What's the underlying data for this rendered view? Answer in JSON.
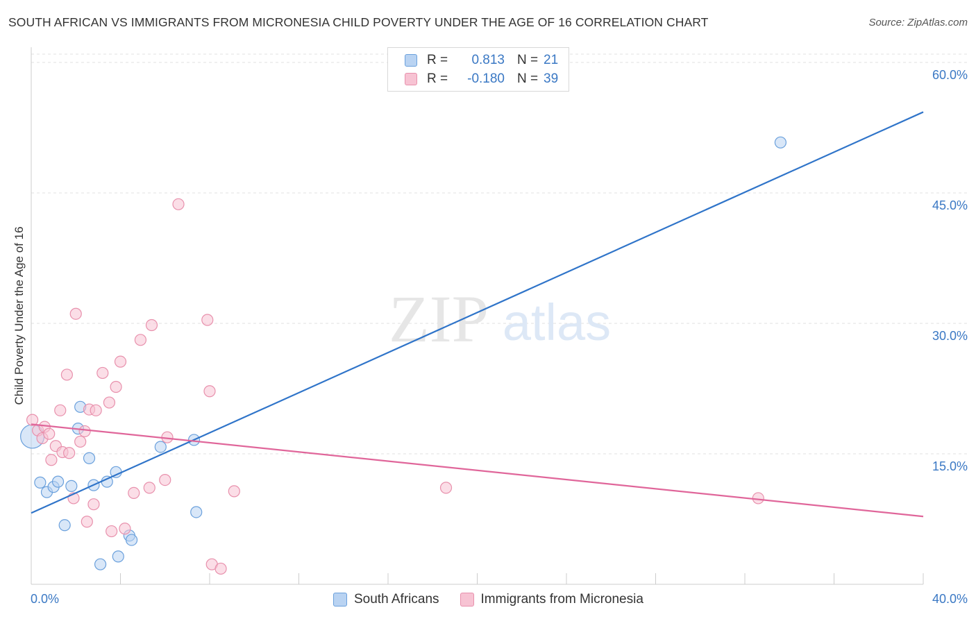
{
  "header": {
    "title": "SOUTH AFRICAN VS IMMIGRANTS FROM MICRONESIA CHILD POVERTY UNDER THE AGE OF 16 CORRELATION CHART",
    "source": "Source: ZipAtlas.com"
  },
  "watermark": {
    "zip": "ZIP",
    "atlas": "atlas"
  },
  "legend_top": {
    "rows": [
      {
        "r_label": "R =",
        "r_value": "0.813",
        "n_label": "N =",
        "n_value": "21",
        "color": "#a9c8ef"
      },
      {
        "r_label": "R =",
        "r_value": "-0.180",
        "n_label": "N =",
        "n_value": "39",
        "color": "#f5b8cb"
      }
    ]
  },
  "legend_bottom": {
    "items": [
      {
        "label": "South Africans",
        "color": "#a9c8ef"
      },
      {
        "label": "Immigrants from Micronesia",
        "color": "#f5b8cb"
      }
    ]
  },
  "chart_data": {
    "type": "scatter",
    "title": "SOUTH AFRICAN VS IMMIGRANTS FROM MICRONESIA CHILD POVERTY UNDER THE AGE OF 16 CORRELATION CHART",
    "xlabel": "",
    "ylabel": "Child Poverty Under the Age of 16",
    "xlim": [
      0,
      40
    ],
    "ylim": [
      0,
      62
    ],
    "x_tick_labels": [
      "0.0%",
      "40.0%"
    ],
    "y_ticks": [
      15,
      30,
      45,
      60
    ],
    "y_tick_labels": [
      "15.0%",
      "30.0%",
      "45.0%",
      "60.0%"
    ],
    "grid": true,
    "series": [
      {
        "name": "South Africans",
        "color": "#6aa0dc",
        "fill": "#b9d3f2",
        "r": 0.813,
        "n": 21,
        "trend": {
          "x": [
            0,
            40
          ],
          "y": [
            8.2,
            54.3
          ]
        },
        "points": [
          {
            "x": 0.05,
            "y": 17.0,
            "large": true
          },
          {
            "x": 0.4,
            "y": 11.7
          },
          {
            "x": 0.7,
            "y": 10.6
          },
          {
            "x": 1.0,
            "y": 11.2
          },
          {
            "x": 1.2,
            "y": 11.8
          },
          {
            "x": 1.5,
            "y": 6.8
          },
          {
            "x": 1.8,
            "y": 11.3
          },
          {
            "x": 2.1,
            "y": 17.9
          },
          {
            "x": 2.2,
            "y": 20.4
          },
          {
            "x": 2.6,
            "y": 14.5
          },
          {
            "x": 2.8,
            "y": 11.4
          },
          {
            "x": 3.1,
            "y": 2.3
          },
          {
            "x": 3.4,
            "y": 11.8
          },
          {
            "x": 3.8,
            "y": 12.9
          },
          {
            "x": 3.9,
            "y": 3.2
          },
          {
            "x": 4.4,
            "y": 5.6
          },
          {
            "x": 4.5,
            "y": 5.1
          },
          {
            "x": 5.8,
            "y": 15.8
          },
          {
            "x": 7.3,
            "y": 16.6
          },
          {
            "x": 7.4,
            "y": 8.3
          },
          {
            "x": 33.6,
            "y": 50.8
          }
        ]
      },
      {
        "name": "Immigrants from Micronesia",
        "color": "#e890ac",
        "fill": "#f7c3d3",
        "r": -0.18,
        "n": 39,
        "trend": {
          "x": [
            0,
            40
          ],
          "y": [
            18.4,
            7.8
          ]
        },
        "points": [
          {
            "x": 0.05,
            "y": 18.9
          },
          {
            "x": 0.3,
            "y": 17.7
          },
          {
            "x": 0.5,
            "y": 16.8
          },
          {
            "x": 0.6,
            "y": 18.1
          },
          {
            "x": 0.8,
            "y": 17.3
          },
          {
            "x": 0.9,
            "y": 14.3
          },
          {
            "x": 1.1,
            "y": 15.9
          },
          {
            "x": 1.3,
            "y": 20.0
          },
          {
            "x": 1.4,
            "y": 15.2
          },
          {
            "x": 1.6,
            "y": 24.1
          },
          {
            "x": 1.7,
            "y": 15.1
          },
          {
            "x": 1.9,
            "y": 9.9
          },
          {
            "x": 2.0,
            "y": 31.1
          },
          {
            "x": 2.2,
            "y": 16.4
          },
          {
            "x": 2.4,
            "y": 17.6
          },
          {
            "x": 2.5,
            "y": 7.2
          },
          {
            "x": 2.6,
            "y": 20.1
          },
          {
            "x": 2.8,
            "y": 9.2
          },
          {
            "x": 2.9,
            "y": 20.0
          },
          {
            "x": 3.2,
            "y": 24.3
          },
          {
            "x": 3.5,
            "y": 20.9
          },
          {
            "x": 3.6,
            "y": 6.1
          },
          {
            "x": 3.8,
            "y": 22.7
          },
          {
            "x": 4.0,
            "y": 25.6
          },
          {
            "x": 4.2,
            "y": 6.4
          },
          {
            "x": 4.6,
            "y": 10.5
          },
          {
            "x": 4.9,
            "y": 28.1
          },
          {
            "x": 5.3,
            "y": 11.1
          },
          {
            "x": 5.4,
            "y": 29.8
          },
          {
            "x": 6.1,
            "y": 16.9
          },
          {
            "x": 6.6,
            "y": 43.7
          },
          {
            "x": 6.0,
            "y": 12.0
          },
          {
            "x": 7.9,
            "y": 30.4
          },
          {
            "x": 8.0,
            "y": 22.2
          },
          {
            "x": 8.1,
            "y": 2.3
          },
          {
            "x": 8.5,
            "y": 1.8
          },
          {
            "x": 9.1,
            "y": 10.7
          },
          {
            "x": 18.6,
            "y": 11.1
          },
          {
            "x": 32.6,
            "y": 9.9
          }
        ]
      }
    ]
  }
}
